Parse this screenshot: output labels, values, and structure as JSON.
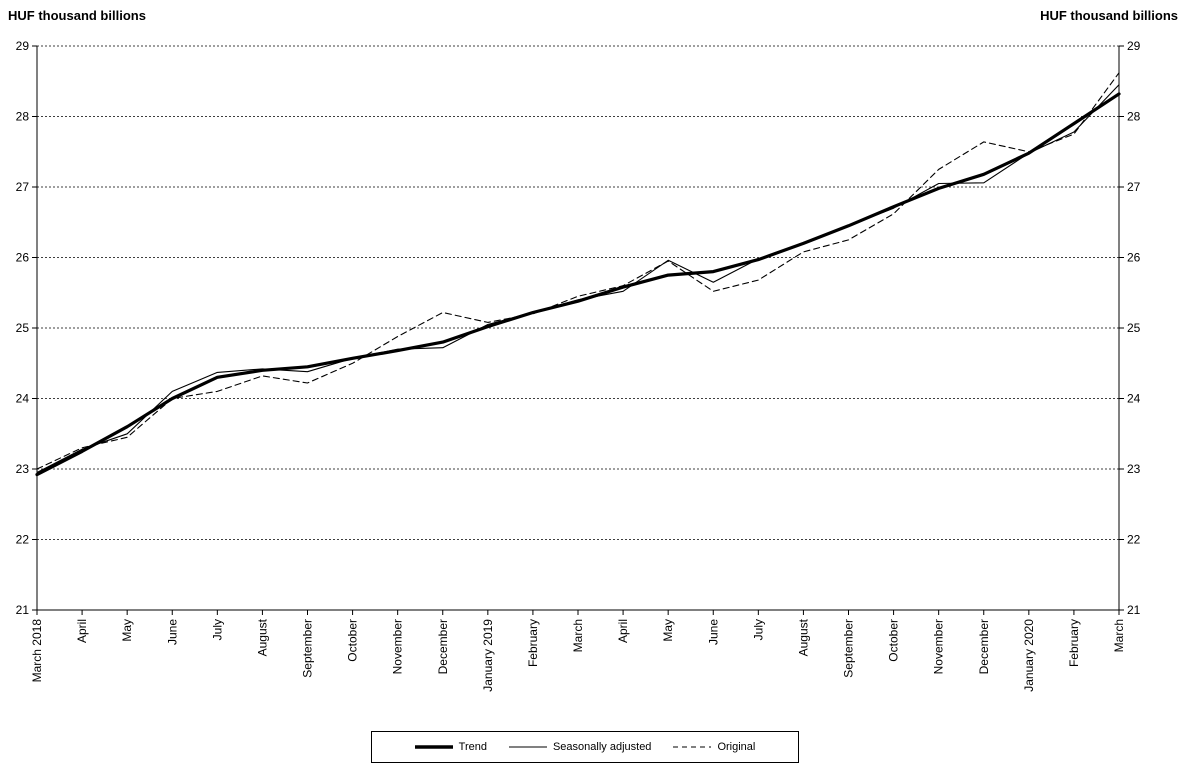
{
  "chart_data": {
    "type": "line",
    "ylabel_left": "HUF thousand billions",
    "ylabel_right": "HUF thousand billions",
    "ylim": [
      21,
      29
    ],
    "yticks": [
      21,
      22,
      23,
      24,
      25,
      26,
      27,
      28,
      29
    ],
    "grid": "horizontal-dashed",
    "legend_position": "bottom-center",
    "categories": [
      "March 2018",
      "April",
      "May",
      "June",
      "July",
      "August",
      "September",
      "October",
      "November",
      "December",
      "January 2019",
      "February",
      "March",
      "April",
      "May",
      "June",
      "July",
      "August",
      "September",
      "October",
      "November",
      "December",
      "January 2020",
      "February",
      "March"
    ],
    "series": [
      {
        "name": "Trend",
        "style": "thick-solid",
        "values": [
          22.92,
          23.25,
          23.6,
          24.0,
          24.3,
          24.4,
          24.45,
          24.57,
          24.68,
          24.8,
          25.02,
          25.22,
          25.38,
          25.58,
          25.75,
          25.8,
          25.97,
          26.2,
          26.45,
          26.72,
          26.98,
          27.18,
          27.48,
          27.9,
          28.32
        ]
      },
      {
        "name": "Seasonally adjusted",
        "style": "thin-solid",
        "values": [
          22.95,
          23.28,
          23.5,
          24.1,
          24.37,
          24.42,
          24.38,
          24.57,
          24.7,
          24.72,
          25.05,
          25.22,
          25.4,
          25.52,
          25.96,
          25.65,
          25.98,
          26.2,
          26.45,
          26.7,
          27.05,
          27.06,
          27.48,
          27.78,
          28.45
        ]
      },
      {
        "name": "Original",
        "style": "dashed",
        "values": [
          23.0,
          23.3,
          23.45,
          24.0,
          24.1,
          24.32,
          24.22,
          24.5,
          24.88,
          25.22,
          25.08,
          25.2,
          25.45,
          25.6,
          25.95,
          25.52,
          25.68,
          26.08,
          26.25,
          26.62,
          27.25,
          27.64,
          27.5,
          27.75,
          28.62
        ]
      }
    ]
  }
}
